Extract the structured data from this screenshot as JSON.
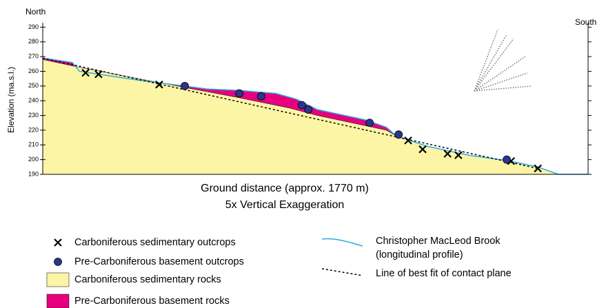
{
  "chart_data": {
    "type": "profile",
    "north_label": "North",
    "south_label": "South",
    "y_label": "Elevation (ma.s.l.)",
    "x_label": "Ground distance (approx. 1770 m)",
    "subtitle": "5x Vertical Exaggeration",
    "xlim": [
      0,
      1770
    ],
    "ylim": [
      190,
      293
    ],
    "yticks": [
      190,
      200,
      210,
      220,
      230,
      240,
      250,
      260,
      270,
      280,
      290
    ],
    "series": [
      {
        "name": "Carboniferous sedimentary outcrops",
        "kind": "x-marker",
        "color": "#000000",
        "x": [
          139,
          181,
          378,
          1186,
          1233,
          1314,
          1349,
          1520,
          1607
        ],
        "values": [
          259,
          258,
          251,
          213,
          207,
          204,
          203,
          199,
          194
        ]
      },
      {
        "name": "Pre-Carboniferous basement outcrops",
        "kind": "circle-marker",
        "color": "#2b3590",
        "x": [
          461,
          638,
          709,
          841,
          862,
          1061,
          1155,
          1506
        ],
        "values": [
          250,
          245,
          243,
          237,
          234,
          225,
          217,
          200
        ]
      },
      {
        "name": "Carboniferous sedimentary rocks",
        "kind": "area",
        "color": "#fdf5a6",
        "x": [
          0,
          112,
          461,
          638,
          801,
          891,
          1115,
          1148,
          1249,
          1383,
          1517,
          1607,
          1674,
          1770
        ],
        "values": [
          268,
          263,
          249,
          242,
          235,
          230,
          220,
          216,
          209,
          203,
          199,
          195,
          190,
          190
        ]
      },
      {
        "name": "Pre-Carboniferous basement rocks",
        "kind": "infill",
        "color": "#e6007e"
      },
      {
        "name": "Christopher MacLeod Brook (longitudinal profile)",
        "kind": "line",
        "color": "#29abe2",
        "x": [
          0,
          96,
          119,
          309,
          461,
          533,
          638,
          756,
          824,
          891,
          1047,
          1115,
          1148,
          1249,
          1383,
          1517,
          1607,
          1674,
          1770
        ],
        "values": [
          269,
          266,
          260,
          254,
          250,
          248,
          247,
          245,
          241,
          234,
          227,
          222,
          216,
          209,
          203,
          199,
          195,
          190,
          190
        ]
      },
      {
        "name": "Line of best fit of contact plane",
        "kind": "dashed",
        "color": "#000000",
        "x": [
          0,
          1607
        ],
        "values": [
          269,
          194
        ]
      }
    ]
  }
}
